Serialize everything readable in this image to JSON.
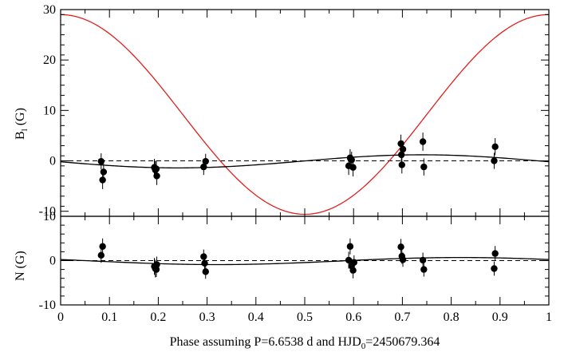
{
  "chart_data": [
    {
      "type": "scatter",
      "panel": "top",
      "ylabel_main": "B",
      "ylabel_sub": "l",
      "ylabel_unit": " (G)",
      "xlim": [
        0,
        1
      ],
      "ylim": [
        -11,
        30
      ],
      "yticks": [
        -10,
        0,
        10,
        20,
        30
      ],
      "ytick_labels": [
        "-10",
        "0",
        "10",
        "20",
        "30"
      ],
      "grid": false,
      "reference_line": {
        "y": 0,
        "style": "dashed"
      },
      "curves": [
        {
          "type": "cosine",
          "color": "#e02020",
          "mean": 9.2,
          "amplitude": 19.8,
          "phase_of_max": 0.0
        },
        {
          "type": "cosine",
          "color": "#000000",
          "mean": -0.1,
          "amplitude": 1.3,
          "phase_of_max": 0.74
        }
      ],
      "points": [
        {
          "x": 0.083,
          "y": -0.1,
          "err": 1.6
        },
        {
          "x": 0.086,
          "y": -3.8,
          "err": 1.8
        },
        {
          "x": 0.088,
          "y": -2.2,
          "err": 1.7
        },
        {
          "x": 0.192,
          "y": -1.3,
          "err": 1.7
        },
        {
          "x": 0.194,
          "y": -1.8,
          "err": 1.8
        },
        {
          "x": 0.197,
          "y": -3.0,
          "err": 1.8
        },
        {
          "x": 0.196,
          "y": -1.6,
          "err": 1.6
        },
        {
          "x": 0.293,
          "y": -1.2,
          "err": 1.6
        },
        {
          "x": 0.297,
          "y": -0.1,
          "err": 1.5
        },
        {
          "x": 0.59,
          "y": -1.0,
          "err": 1.8
        },
        {
          "x": 0.593,
          "y": 0.6,
          "err": 1.7
        },
        {
          "x": 0.596,
          "y": 0.2,
          "err": 1.6
        },
        {
          "x": 0.599,
          "y": -1.3,
          "err": 1.8
        },
        {
          "x": 0.697,
          "y": 3.4,
          "err": 1.8
        },
        {
          "x": 0.699,
          "y": -0.8,
          "err": 1.7
        },
        {
          "x": 0.701,
          "y": 2.3,
          "err": 1.7
        },
        {
          "x": 0.698,
          "y": 1.2,
          "err": 1.6
        },
        {
          "x": 0.742,
          "y": 3.8,
          "err": 1.8
        },
        {
          "x": 0.744,
          "y": -1.2,
          "err": 1.7
        },
        {
          "x": 0.89,
          "y": 2.8,
          "err": 1.7
        },
        {
          "x": 0.888,
          "y": 0.0,
          "err": 1.6
        }
      ]
    },
    {
      "type": "scatter",
      "panel": "bottom",
      "ylabel": "N (G)",
      "xlabel_main": "Phase assuming P=6.6538 d  and HJD",
      "xlabel_sub": "0",
      "xlabel_tail": "=2450679.364",
      "xlim": [
        0,
        1
      ],
      "ylim": [
        -10,
        10
      ],
      "yticks": [
        -10,
        0,
        10
      ],
      "ytick_labels": [
        "-10",
        "0",
        "10"
      ],
      "xticks": [
        0,
        0.1,
        0.2,
        0.3,
        0.4,
        0.5,
        0.6,
        0.7,
        0.8,
        0.9,
        1
      ],
      "xtick_labels": [
        "0",
        "0.1",
        "0.2",
        "0.3",
        "0.4",
        "0.5",
        "0.6",
        "0.7",
        "0.8",
        "0.9",
        "1"
      ],
      "grid": false,
      "reference_line": {
        "y": 0,
        "style": "dashed"
      },
      "curves": [
        {
          "type": "cosine",
          "color": "#000000",
          "mean": -0.1,
          "amplitude": 0.8,
          "phase_of_max": 0.82
        }
      ],
      "points": [
        {
          "x": 0.083,
          "y": 1.2,
          "err": 1.7
        },
        {
          "x": 0.086,
          "y": 3.2,
          "err": 1.8
        },
        {
          "x": 0.192,
          "y": -1.3,
          "err": 1.9
        },
        {
          "x": 0.194,
          "y": -1.8,
          "err": 2.0
        },
        {
          "x": 0.197,
          "y": -0.9,
          "err": 1.8
        },
        {
          "x": 0.196,
          "y": -2.0,
          "err": 1.7
        },
        {
          "x": 0.293,
          "y": 0.9,
          "err": 1.6
        },
        {
          "x": 0.295,
          "y": -0.6,
          "err": 1.5
        },
        {
          "x": 0.297,
          "y": -2.5,
          "err": 1.6
        },
        {
          "x": 0.59,
          "y": 0.1,
          "err": 1.9
        },
        {
          "x": 0.593,
          "y": 3.2,
          "err": 1.8
        },
        {
          "x": 0.596,
          "y": -1.2,
          "err": 1.7
        },
        {
          "x": 0.599,
          "y": -2.2,
          "err": 1.8
        },
        {
          "x": 0.601,
          "y": -0.4,
          "err": 1.6
        },
        {
          "x": 0.697,
          "y": 3.1,
          "err": 1.8
        },
        {
          "x": 0.699,
          "y": 1.0,
          "err": 1.7
        },
        {
          "x": 0.701,
          "y": 0.2,
          "err": 1.6
        },
        {
          "x": 0.742,
          "y": 0.1,
          "err": 1.7
        },
        {
          "x": 0.744,
          "y": -2.0,
          "err": 1.6
        },
        {
          "x": 0.89,
          "y": 1.6,
          "err": 1.7
        },
        {
          "x": 0.888,
          "y": -1.8,
          "err": 1.6
        }
      ]
    }
  ]
}
